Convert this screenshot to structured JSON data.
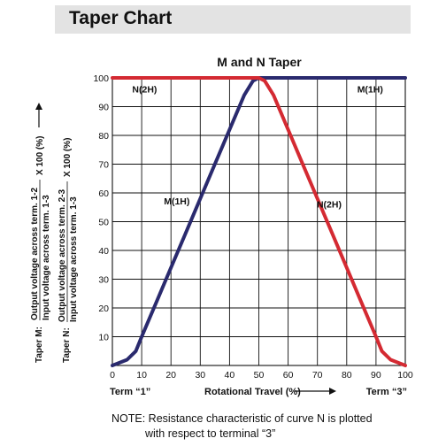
{
  "header": {
    "title": "Taper Chart"
  },
  "note": {
    "line1": "NOTE: Resistance characteristic of curve N is plotted",
    "line2": "with respect to terminal “3”"
  },
  "chart_data": {
    "type": "line",
    "title": "M and N Taper",
    "xlabel": "Rotational Travel (%)",
    "x_end_labels": {
      "left": "Term “1”",
      "right": "Term “3”"
    },
    "ylabel_lines": [
      {
        "taper": "Taper M:",
        "numerator": "Output voltage across term. 1-2",
        "denominator": "Input voltage across term. 1-3",
        "multiplier": "X 100 (%)"
      },
      {
        "taper": "Taper N:",
        "numerator": "Output voltage across term. 2-3",
        "denominator": "Input voltage across term. 1-3",
        "multiplier": "X 100 (%)"
      }
    ],
    "xlim": [
      0,
      100
    ],
    "ylim": [
      0,
      100
    ],
    "x_ticks": [
      0,
      10,
      20,
      30,
      40,
      50,
      60,
      70,
      80,
      90,
      100
    ],
    "y_ticks": [
      10,
      20,
      30,
      40,
      50,
      60,
      70,
      80,
      90,
      100
    ],
    "grid": true,
    "series": [
      {
        "color": "#2a2a6e",
        "x": [
          0,
          5,
          8,
          10,
          15,
          20,
          25,
          30,
          35,
          40,
          45,
          48,
          50,
          52,
          55,
          60,
          70,
          80,
          90,
          100
        ],
        "y": [
          0,
          2,
          5,
          10,
          22,
          34,
          46,
          58,
          70,
          82,
          94,
          99,
          100,
          100,
          100,
          100,
          100,
          100,
          100,
          100
        ]
      },
      {
        "color": "#d42a32",
        "x": [
          0,
          10,
          20,
          30,
          40,
          45,
          48,
          50,
          52,
          55,
          60,
          65,
          70,
          75,
          80,
          85,
          90,
          92,
          95,
          100
        ],
        "y": [
          100,
          100,
          100,
          100,
          100,
          100,
          100,
          100,
          99,
          94,
          82,
          70,
          58,
          46,
          34,
          22,
          10,
          5,
          2,
          0
        ]
      }
    ],
    "annotations": [
      {
        "text": "N(2H)",
        "x": 11,
        "y": 95
      },
      {
        "text": "M(1H)",
        "x": 88,
        "y": 95
      },
      {
        "text": "M(1H)",
        "x": 22,
        "y": 56
      },
      {
        "text": "N(2H)",
        "x": 74,
        "y": 55
      }
    ]
  }
}
